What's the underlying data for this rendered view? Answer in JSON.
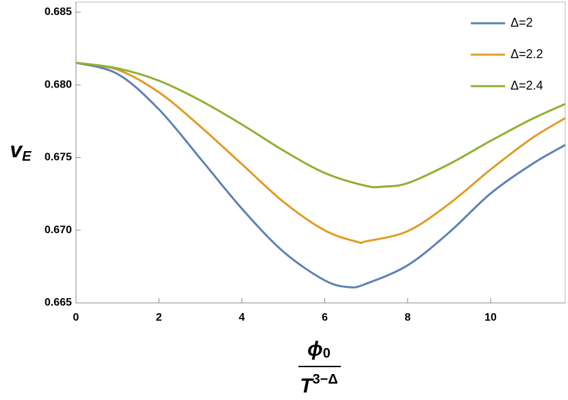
{
  "chart_data": {
    "type": "line",
    "y_label": "v",
    "y_label_sub": "E",
    "x_label_numerator": "ϕ",
    "x_label_numerator_sub": "0",
    "x_label_denominator": "T",
    "x_label_denominator_sup": "3−Δ",
    "xlim": [
      0,
      11.8
    ],
    "xticks": [
      0,
      2,
      4,
      6,
      8,
      10
    ],
    "ylim": [
      0.665,
      0.6857
    ],
    "yticks": [
      0.665,
      {
        "value": 0.67,
        "label": "0.670"
      },
      0.675,
      {
        "value": 0.68,
        "label": "0.680"
      },
      0.685
    ],
    "legend": "top-right",
    "series": [
      {
        "name": "Δ=2",
        "color": "#5e81b5",
        "x": [
          0,
          1,
          2,
          3,
          4,
          5,
          6,
          6.6,
          7,
          8,
          9,
          10,
          11,
          11.8
        ],
        "values": [
          0.68152,
          0.68076,
          0.67832,
          0.67493,
          0.67149,
          0.66853,
          0.66655,
          0.66608,
          0.66632,
          0.66759,
          0.66985,
          0.67253,
          0.67455,
          0.67587
        ]
      },
      {
        "name": "Δ=2.2",
        "color": "#e19c24",
        "x": [
          0,
          1,
          2,
          3,
          4,
          5,
          6,
          6.8,
          7,
          8,
          9,
          10,
          11,
          11.8
        ],
        "values": [
          0.68152,
          0.68105,
          0.67949,
          0.67714,
          0.67455,
          0.67196,
          0.66999,
          0.66919,
          0.66924,
          0.66994,
          0.67182,
          0.67418,
          0.67634,
          0.67771
        ]
      },
      {
        "name": "Δ=2.4",
        "color": "#8fb032",
        "x": [
          0,
          1,
          2,
          3,
          4,
          5,
          6,
          7,
          7.4,
          8,
          9,
          10,
          11,
          11.8
        ],
        "values": [
          0.68152,
          0.68114,
          0.68029,
          0.67893,
          0.67728,
          0.67549,
          0.67394,
          0.67305,
          0.673,
          0.67324,
          0.67455,
          0.67615,
          0.67766,
          0.67869
        ]
      }
    ]
  }
}
